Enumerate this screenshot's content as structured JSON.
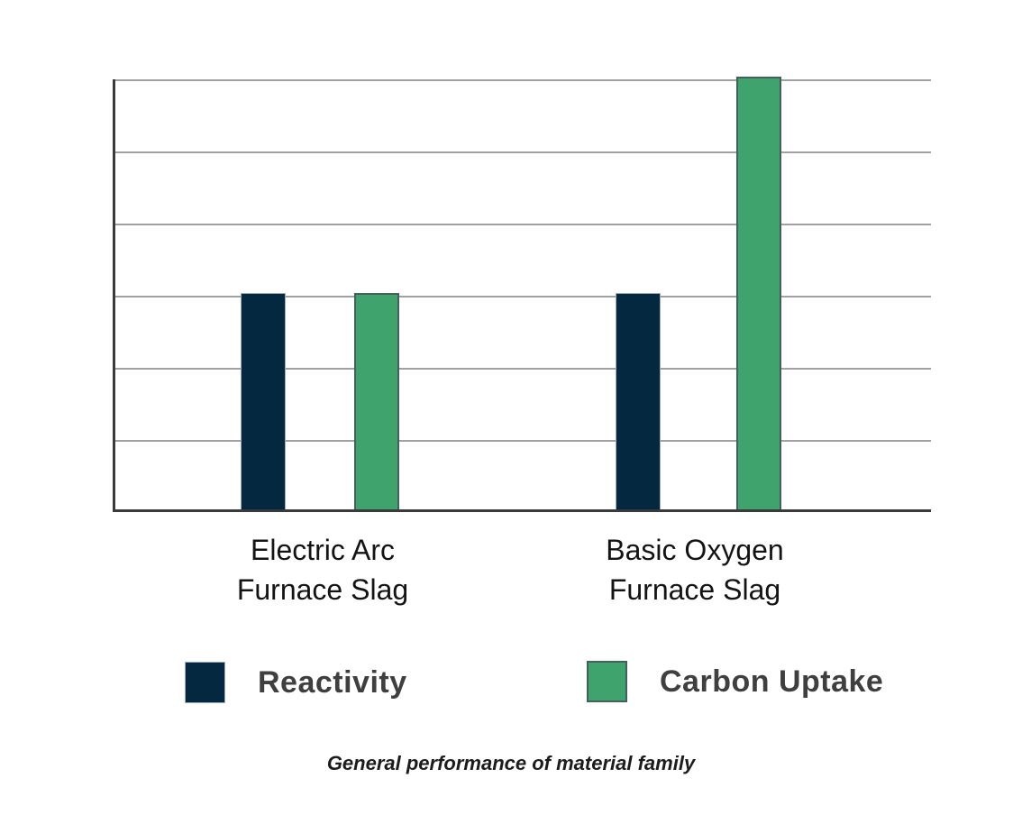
{
  "chart_data": {
    "type": "bar",
    "categories": [
      "Electric Arc\nFurnace Slag",
      "Basic Oxygen\nFurnace Slag"
    ],
    "series": [
      {
        "name": "Reactivity",
        "values": [
          3,
          3
        ],
        "color": "#042840",
        "border_color": "#9fadb6"
      },
      {
        "name": "Carbon Uptake",
        "values": [
          3,
          6
        ],
        "color": "#3ea36c",
        "border_color": "#45605a"
      }
    ],
    "ylim": [
      0,
      6
    ],
    "gridline_step": 1,
    "y_tick_labels_visible": false,
    "x_tick_labels_visible": true,
    "grid": "horizontal",
    "legend_position": "bottom",
    "title": "",
    "xlabel": "",
    "ylabel": "",
    "caption": "General performance of material family"
  }
}
